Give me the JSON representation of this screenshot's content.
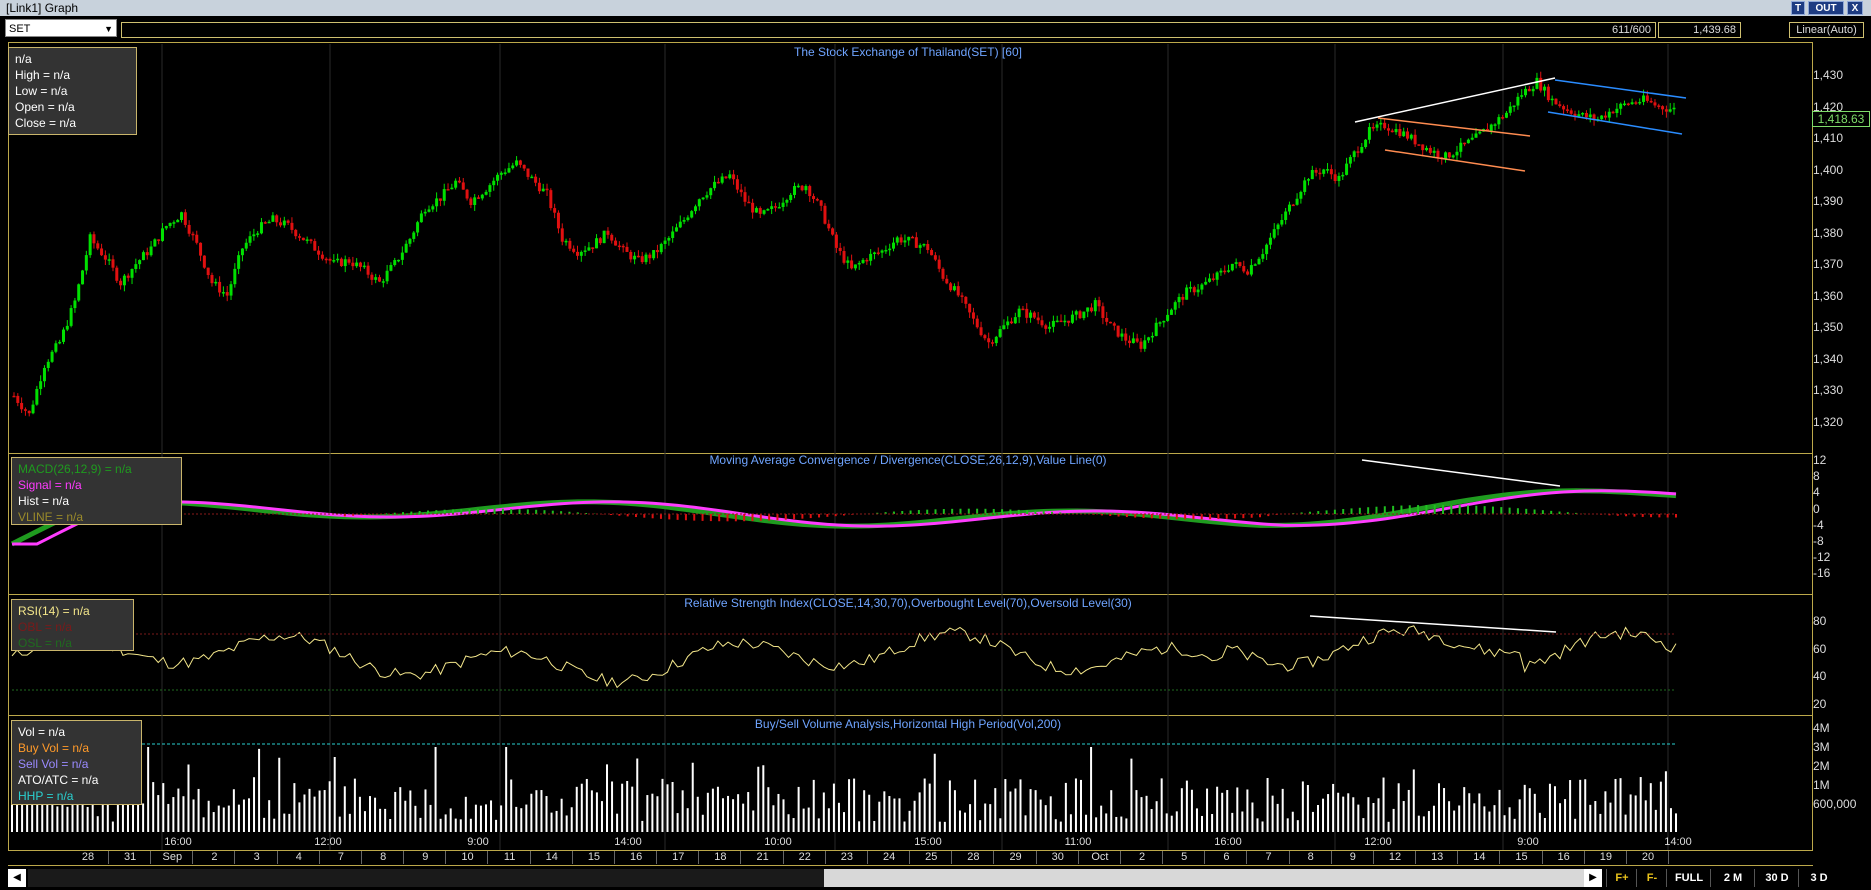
{
  "window": {
    "title": "[Link1] Graph"
  },
  "title_buttons": [
    "T",
    "OUT",
    "X"
  ],
  "toolbar": {
    "symbol": "SET",
    "ratio": "611/600",
    "price_readout": "1,439.68",
    "scale_mode": "Linear(Auto)"
  },
  "price_pane": {
    "title": "The Stock Exchange of Thailand(SET) [60]",
    "legend": [
      "n/a",
      "High  = n/a",
      "Low  = n/a",
      "Open  = n/a",
      "Close  = n/a"
    ],
    "y_ticks": [
      "1,430",
      "1,420",
      "1,410",
      "1,400",
      "1,390",
      "1,380",
      "1,370",
      "1,360",
      "1,350",
      "1,340",
      "1,330",
      "1,320"
    ],
    "current_price": "1,418.63"
  },
  "macd_pane": {
    "title": "Moving Average Convergence / Divergence(CLOSE,26,12,9),Value Line(0)",
    "legend": [
      {
        "text": "MACD(26,12,9)  = n/a",
        "color": "#1f9b1f"
      },
      {
        "text": "Signal  = n/a",
        "color": "#ff3cff"
      },
      {
        "text": "Hist  = n/a",
        "color": "#ffffff"
      },
      {
        "text": "VLINE  = n/a",
        "color": "#9a8a2a"
      }
    ],
    "y_ticks": [
      "12",
      "8",
      "4",
      "0",
      "-4",
      "-8",
      "-12",
      "-16"
    ]
  },
  "rsi_pane": {
    "title": "Relative Strength Index(CLOSE,14,30,70),Overbought Level(70),Oversold Level(30)",
    "legend": [
      {
        "text": "RSI(14)  = n/a",
        "color": "#f3e68a"
      },
      {
        "text": "OBL  = n/a",
        "color": "#7a1a1a"
      },
      {
        "text": "OSL  = n/a",
        "color": "#1f6b1f"
      }
    ],
    "y_ticks": [
      "80",
      "60",
      "40",
      "20"
    ]
  },
  "volume_pane": {
    "title": "Buy/Sell Volume Analysis,Horizontal High Period(Vol,200)",
    "legend": [
      {
        "text": "Vol  = n/a",
        "color": "#ffffff"
      },
      {
        "text": "Buy Vol  = n/a",
        "color": "#ff9a2a"
      },
      {
        "text": "Sell Vol  = n/a",
        "color": "#9a8aff"
      },
      {
        "text": "ATO/ATC  = n/a",
        "color": "#ffffff"
      },
      {
        "text": "HHP  = n/a",
        "color": "#2ad0d0"
      }
    ],
    "y_ticks": [
      "4M",
      "3M",
      "2M",
      "1M",
      "600,000"
    ]
  },
  "x_axis": {
    "dates": [
      "28",
      "31",
      "Sep",
      "2",
      "3",
      "4",
      "7",
      "8",
      "9",
      "10",
      "11",
      "14",
      "15",
      "16",
      "17",
      "18",
      "21",
      "22",
      "23",
      "24",
      "25",
      "28",
      "29",
      "30",
      "Oct",
      "2",
      "5",
      "6",
      "7",
      "8",
      "9",
      "12",
      "13",
      "14",
      "15",
      "16",
      "19",
      "20"
    ],
    "times": [
      "16:00",
      "12:00",
      "9:00",
      "14:00",
      "10:00",
      "15:00",
      "11:00",
      "16:00",
      "12:00",
      "9:00",
      "14:00"
    ]
  },
  "bottom_buttons": [
    "F+",
    "F-",
    "FULL",
    "2 M",
    "30 D",
    "3 D"
  ],
  "colors": {
    "up": "#00e000",
    "down": "#e01010",
    "title_blue": "#6fa4ff",
    "separator": "#bca84a"
  },
  "chart_data": {
    "type": "candlestick",
    "title": "The Stock Exchange of Thailand(SET) [60]",
    "ylim": [
      1315,
      1435
    ],
    "close_path": [
      1328,
      1322,
      1338,
      1345,
      1358,
      1378,
      1372,
      1364,
      1370,
      1375,
      1382,
      1386,
      1376,
      1364,
      1360,
      1375,
      1381,
      1384,
      1382,
      1378,
      1374,
      1370,
      1371,
      1368,
      1364,
      1370,
      1378,
      1388,
      1391,
      1396,
      1390,
      1394,
      1399,
      1402,
      1397,
      1392,
      1378,
      1374,
      1376,
      1380,
      1374,
      1371,
      1373,
      1378,
      1384,
      1391,
      1395,
      1398,
      1390,
      1385,
      1388,
      1393,
      1395,
      1387,
      1375,
      1368,
      1372,
      1374,
      1378,
      1377,
      1375,
      1366,
      1360,
      1352,
      1345,
      1350,
      1355,
      1353,
      1350,
      1352,
      1354,
      1357,
      1350,
      1346,
      1344,
      1350,
      1356,
      1361,
      1363,
      1366,
      1370,
      1368,
      1374,
      1382,
      1390,
      1398,
      1400,
      1397,
      1405,
      1412,
      1414,
      1412,
      1409,
      1406,
      1404,
      1407,
      1410,
      1414,
      1418,
      1424,
      1428,
      1422,
      1419,
      1417,
      1416,
      1419,
      1421,
      1422,
      1420,
      1419
    ]
  }
}
